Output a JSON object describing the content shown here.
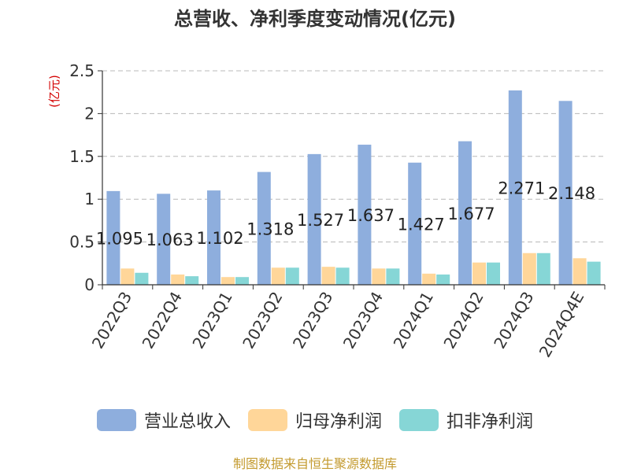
{
  "title": "总营收、净利季度变动情况(亿元)",
  "source": "制图数据来自恒生聚源数据库",
  "colors": {
    "revenue": "#8eaedd",
    "net_profit": "#ffd699",
    "deducted_profit": "#86d6d6",
    "unit": "#d40000",
    "axis": "#333333",
    "grid": "#b8b8b8"
  },
  "chart_data": {
    "type": "bar",
    "title": "总营收、净利季度变动情况(亿元)",
    "ylabel": "(亿元)",
    "xlabel": "",
    "ylim": [
      0,
      2.5
    ],
    "yticks": [
      "0",
      "0.5",
      "1",
      "1.5",
      "2",
      "2.5"
    ],
    "grid": true,
    "legend_position": "bottom",
    "categories": [
      "2022Q3",
      "2022Q4",
      "2023Q1",
      "2023Q2",
      "2023Q3",
      "2023Q4",
      "2024Q1",
      "2024Q2",
      "2024Q3",
      "2024Q4E"
    ],
    "series": [
      {
        "name": "营业总收入",
        "values": [
          1.095,
          1.063,
          1.102,
          1.318,
          1.527,
          1.637,
          1.427,
          1.677,
          2.271,
          2.148
        ]
      },
      {
        "name": "归母净利润",
        "values": [
          0.19,
          0.12,
          0.09,
          0.2,
          0.21,
          0.19,
          0.13,
          0.26,
          0.37,
          0.31
        ]
      },
      {
        "name": "扣非净利润",
        "values": [
          0.14,
          0.1,
          0.09,
          0.2,
          0.2,
          0.19,
          0.12,
          0.26,
          0.37,
          0.27
        ]
      }
    ],
    "data_labels": [
      "1.095",
      "1.063",
      "1.102",
      "1.318",
      "1.527",
      "1.637",
      "1.427",
      "1.677",
      "2.271",
      "2.148"
    ]
  }
}
